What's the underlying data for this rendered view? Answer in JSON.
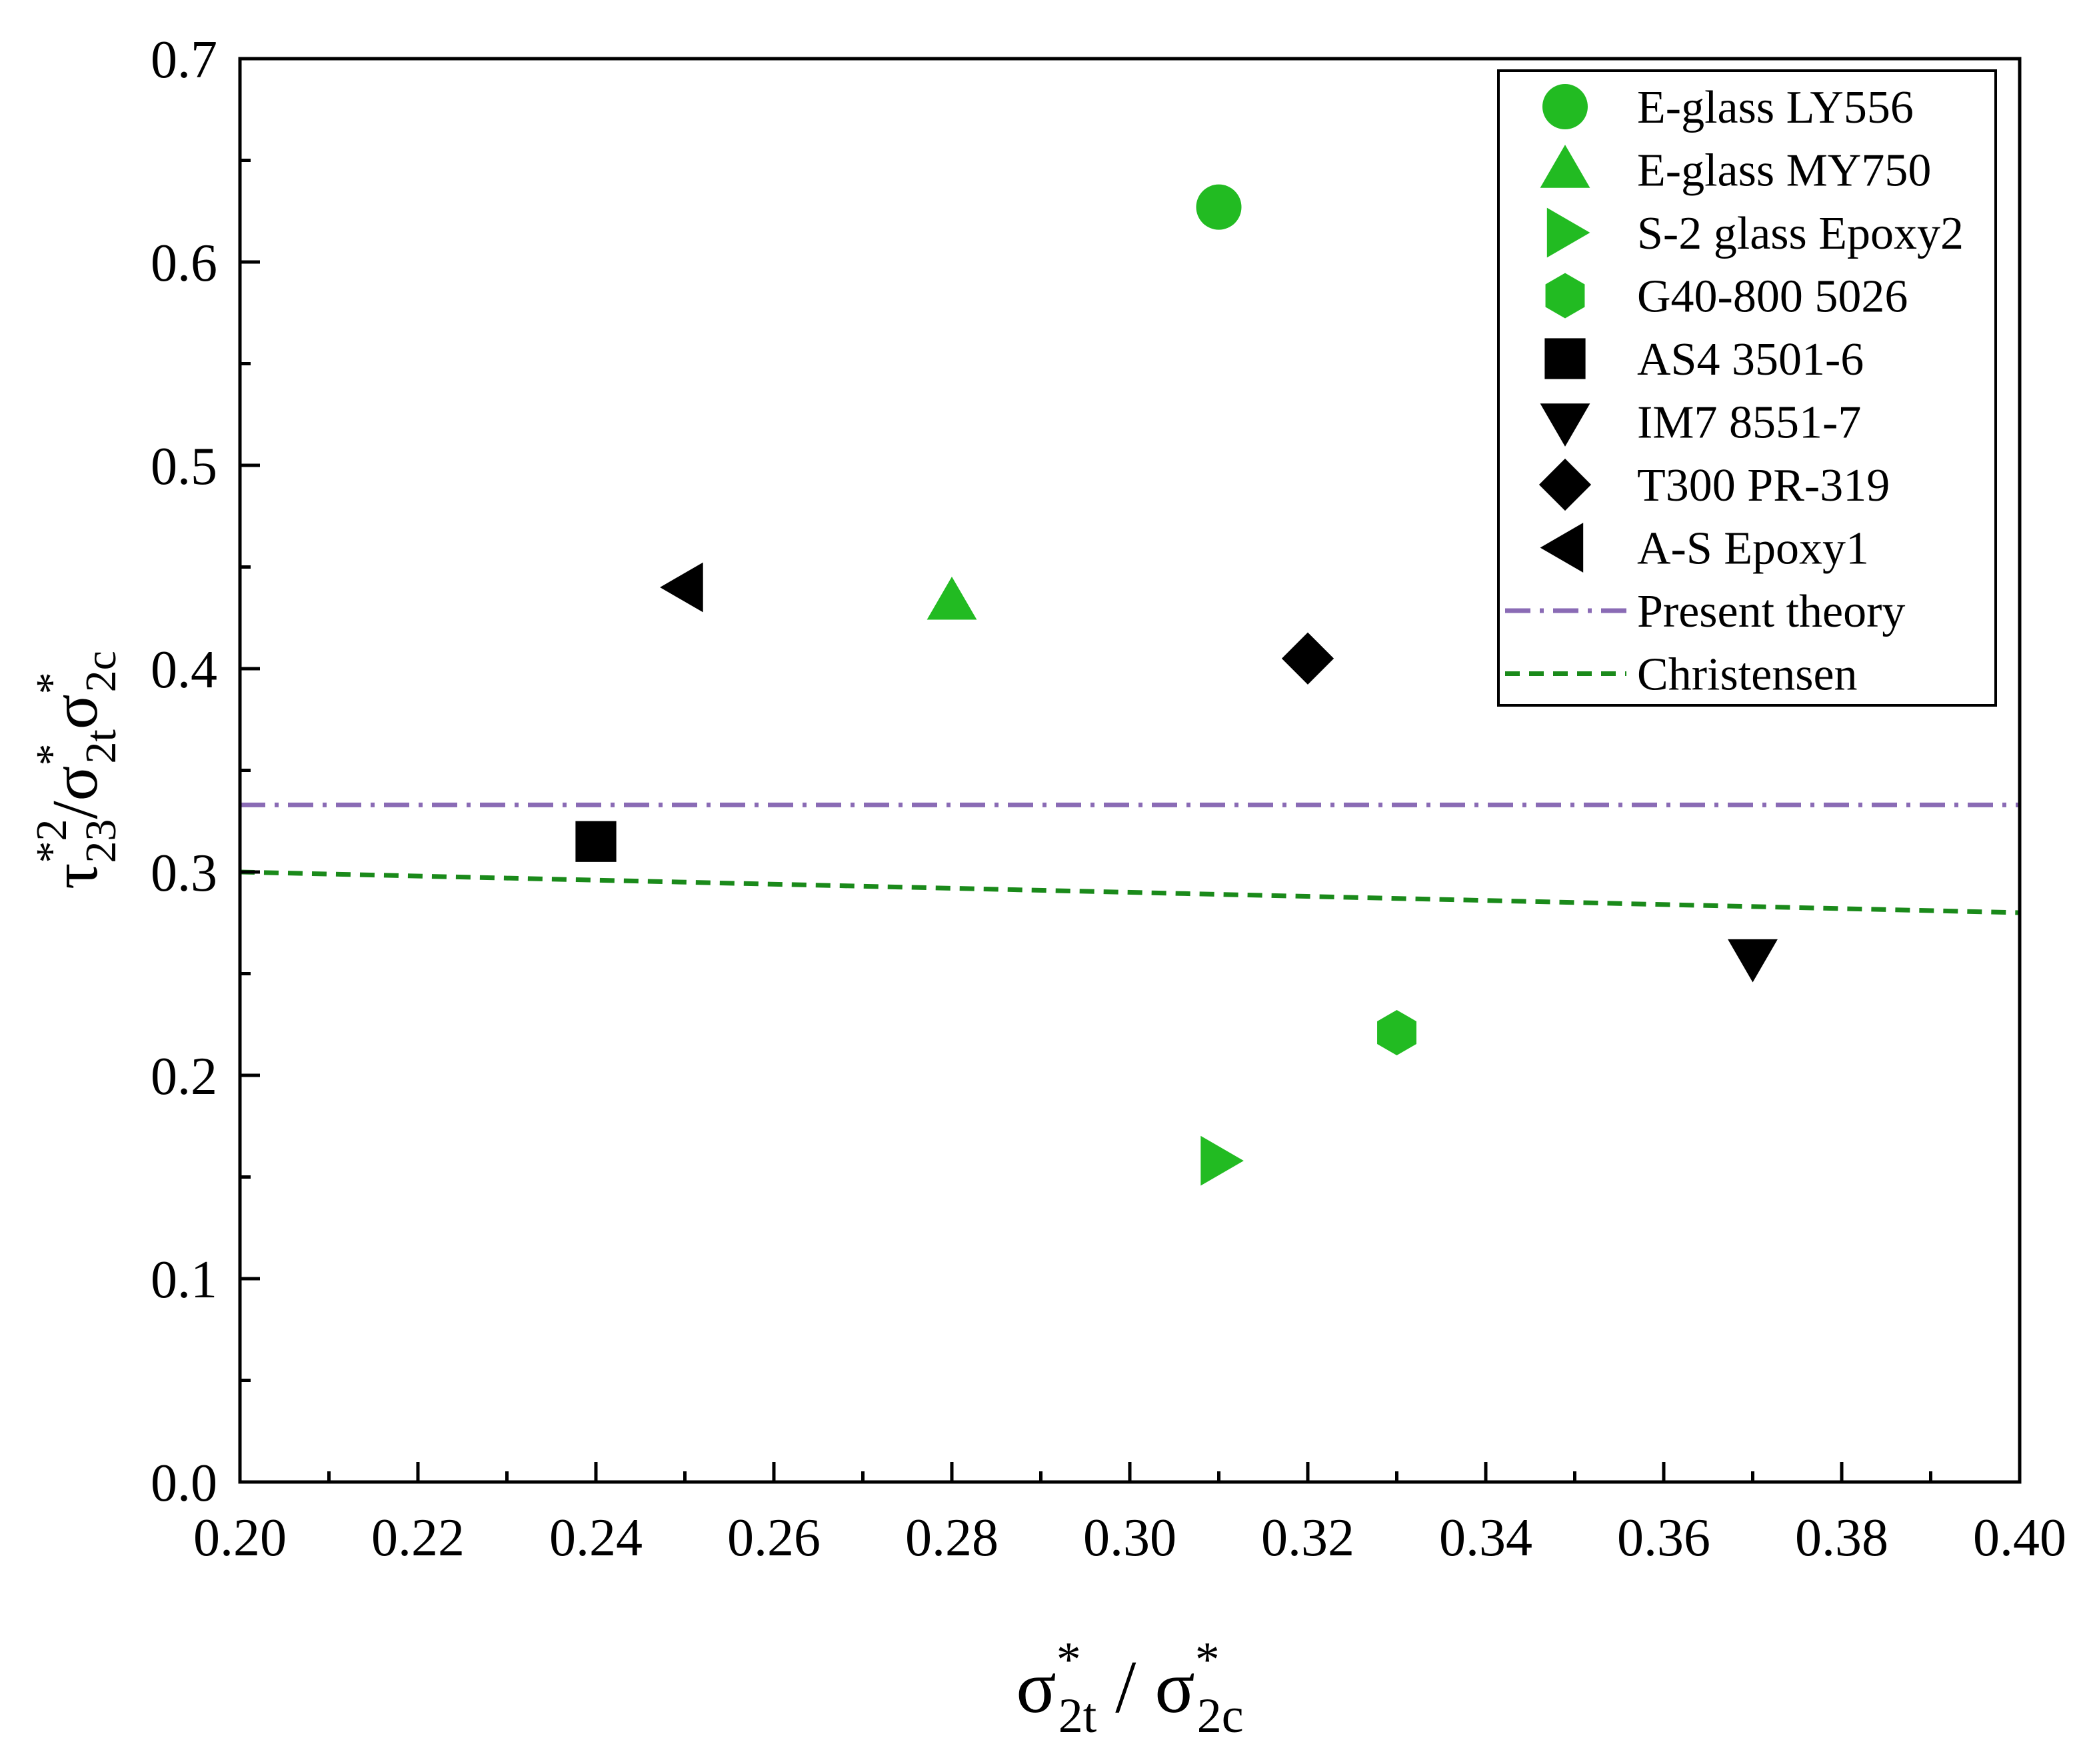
{
  "chart_data": {
    "type": "scatter",
    "xlim": [
      0.2,
      0.4
    ],
    "ylim": [
      0.0,
      0.7
    ],
    "x_ticks": [
      "0.20",
      "0.22",
      "0.24",
      "0.26",
      "0.28",
      "0.30",
      "0.32",
      "0.34",
      "0.36",
      "0.38",
      "0.40"
    ],
    "y_ticks": [
      "0.0",
      "0.1",
      "0.2",
      "0.3",
      "0.4",
      "0.5",
      "0.6",
      "0.7"
    ],
    "xlabel": {
      "base1": "σ",
      "sup1": "*",
      "sub1": "2t",
      "sep": " / ",
      "base2": "σ",
      "sup2": "*",
      "sub2": "2c"
    },
    "ylabel": {
      "p1": "τ",
      "sup1": "*2",
      "sub1": "23",
      "p2": "/σ",
      "sup2": "*",
      "sub2": "2t",
      "p3": "σ",
      "sup3": "*",
      "sub3": "2c"
    },
    "grid": false,
    "legend_position": "top-right",
    "series": [
      {
        "name": "E-glass LY556",
        "marker": "circle",
        "color": "#22bb22",
        "x": 0.31,
        "y": 0.627
      },
      {
        "name": "E-glass MY750",
        "marker": "triangle-up",
        "color": "#22bb22",
        "x": 0.28,
        "y": 0.433
      },
      {
        "name": "S-2 glass Epoxy2",
        "marker": "triangle-right",
        "color": "#22bb22",
        "x": 0.31,
        "y": 0.158
      },
      {
        "name": "G40-800 5026",
        "marker": "hexagon",
        "color": "#22bb22",
        "x": 0.33,
        "y": 0.221
      },
      {
        "name": "AS4 3501-6",
        "marker": "square",
        "color": "#000000",
        "x": 0.24,
        "y": 0.315
      },
      {
        "name": "IM7 8551-7",
        "marker": "triangle-down",
        "color": "#000000",
        "x": 0.37,
        "y": 0.258
      },
      {
        "name": "T300 PR-319",
        "marker": "diamond",
        "color": "#000000",
        "x": 0.32,
        "y": 0.405
      },
      {
        "name": "A-S Epoxy1",
        "marker": "triangle-left",
        "color": "#000000",
        "x": 0.25,
        "y": 0.44
      }
    ],
    "lines": [
      {
        "name": "Present theory",
        "style": "dash-dot",
        "color": "#8a6bb5",
        "x": [
          0.2,
          0.4
        ],
        "y": [
          0.333,
          0.333
        ]
      },
      {
        "name": "Christensen",
        "style": "dash",
        "color": "#1a8a1a",
        "x": [
          0.2,
          0.4
        ],
        "y": [
          0.3,
          0.28
        ]
      }
    ]
  }
}
